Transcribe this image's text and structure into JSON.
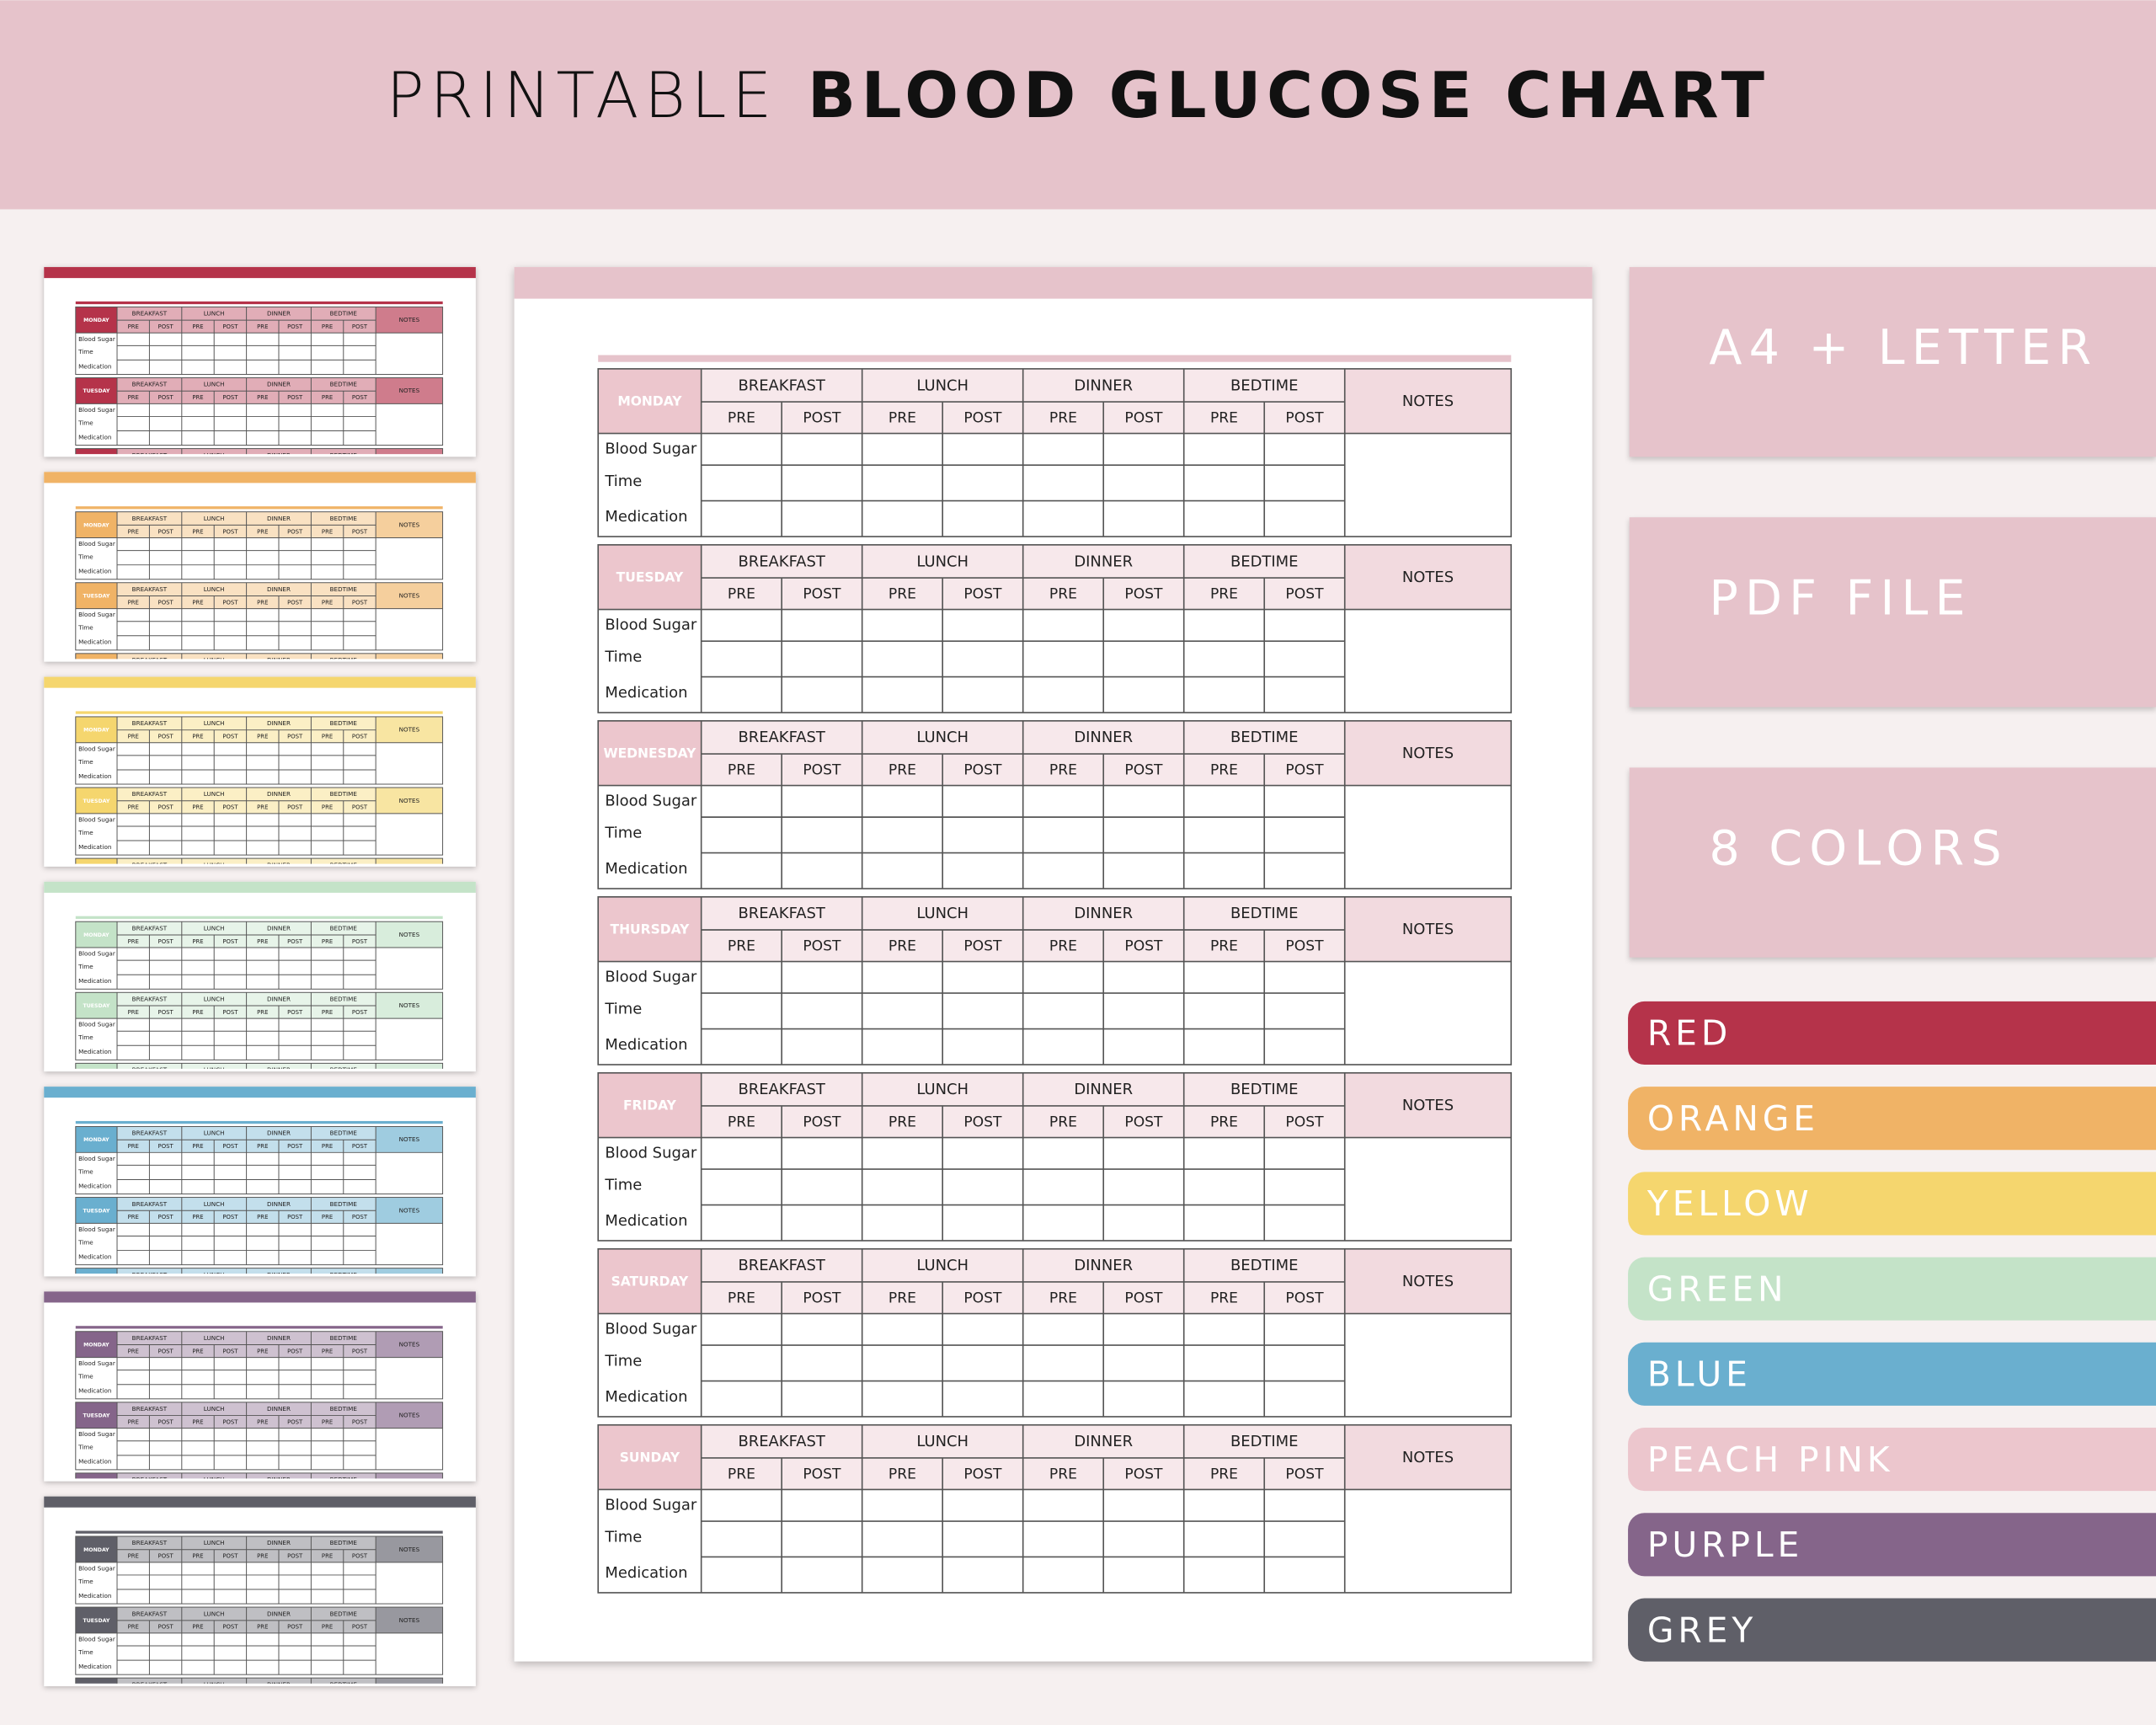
{
  "header": {
    "title_light": "PRINTABLE",
    "title_bold": "BLOOD GLUCOSE CHART"
  },
  "sheet": {
    "days": [
      "MONDAY",
      "TUESDAY",
      "WEDNESDAY",
      "THURSDAY",
      "FRIDAY",
      "SATURDAY",
      "SUNDAY"
    ],
    "meals": [
      "BREAKFAST",
      "LUNCH",
      "DINNER",
      "BEDTIME"
    ],
    "sub": [
      "PRE",
      "POST"
    ],
    "notes": "NOTES",
    "rows": [
      "Blood Sugar",
      "Time",
      "Medication"
    ]
  },
  "features": [
    "A4 + LETTER",
    "PDF FILE",
    "8 COLORS"
  ],
  "colors": [
    {
      "name": "RED",
      "color": "#b5334a"
    },
    {
      "name": "ORANGE",
      "color": "#f0b366"
    },
    {
      "name": "YELLOW",
      "color": "#f5d66e"
    },
    {
      "name": "GREEN",
      "color": "#c4e3c8"
    },
    {
      "name": "BLUE",
      "color": "#6aafcf"
    },
    {
      "name": "PEACH PINK",
      "color": "#ecc6cd"
    },
    {
      "name": "PURPLE",
      "color": "#85658a"
    },
    {
      "name": "GREY",
      "color": "#5f5f68"
    }
  ]
}
